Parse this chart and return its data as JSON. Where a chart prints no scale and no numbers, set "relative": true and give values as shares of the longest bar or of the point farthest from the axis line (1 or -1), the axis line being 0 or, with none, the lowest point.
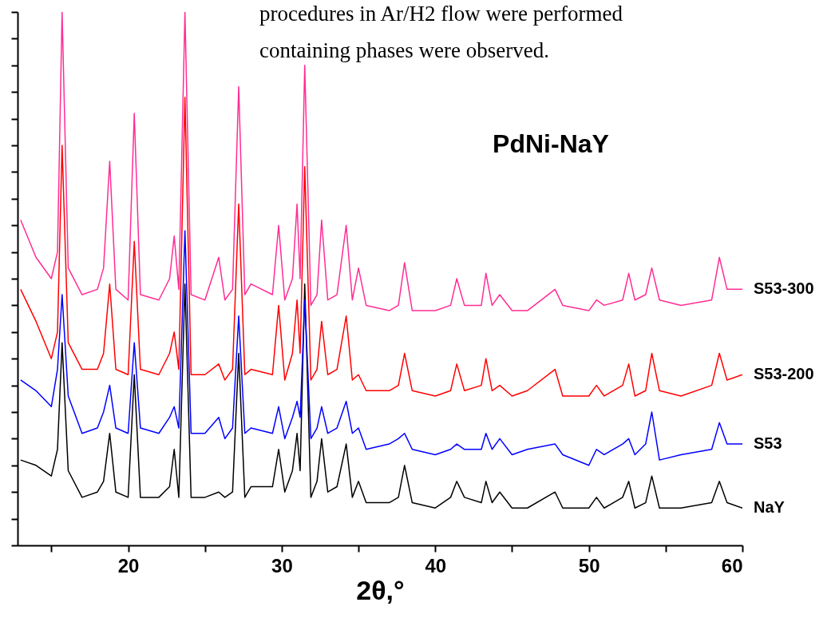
{
  "chart_data": {
    "type": "line",
    "title": "PdNi-NaY",
    "xlabel": "2θ,°",
    "relative": true,
    "annotations": [
      "procedures in Ar/H2 flow were performed",
      "containing phases were observed."
    ],
    "xlim": [
      12.8,
      60
    ],
    "xticks": [
      {
        "value": 15,
        "label": null
      },
      20,
      {
        "value": 25,
        "label": null
      },
      30,
      {
        "value": 35,
        "label": null
      },
      40,
      {
        "value": 45,
        "label": null
      },
      50,
      {
        "value": 55,
        "label": null
      },
      60
    ],
    "grid": false,
    "marker": "none",
    "line_style": "solid",
    "x": [
      13,
      14,
      15,
      15.4,
      15.7,
      16.1,
      17,
      18,
      18.4,
      18.8,
      19.2,
      20,
      20.4,
      20.8,
      22,
      22.7,
      23,
      23.3,
      23.7,
      24.1,
      25,
      25.9,
      26.3,
      26.8,
      27.2,
      27.6,
      28,
      29.4,
      29.8,
      30.2,
      30.7,
      31,
      31.2,
      31.5,
      31.9,
      32.3,
      32.6,
      33,
      33.6,
      34.2,
      34.6,
      35,
      35.5,
      37,
      37.6,
      38,
      38.5,
      40,
      41,
      41.4,
      41.9,
      43,
      43.3,
      43.7,
      44.2,
      45,
      46,
      47.8,
      48.3,
      50,
      50.5,
      51,
      52.2,
      52.6,
      53,
      53.7,
      54.1,
      54.6,
      56,
      58,
      58.5,
      59,
      60
    ],
    "series": [
      {
        "name": "NaY",
        "color": "#000000",
        "values": [
          0.16,
          0.15,
          0.13,
          0.18,
          0.38,
          0.14,
          0.09,
          0.1,
          0.12,
          0.21,
          0.1,
          0.09,
          0.32,
          0.09,
          0.09,
          0.11,
          0.18,
          0.09,
          0.49,
          0.09,
          0.09,
          0.1,
          0.09,
          0.1,
          0.36,
          0.09,
          0.11,
          0.11,
          0.18,
          0.1,
          0.14,
          0.21,
          0.14,
          0.49,
          0.09,
          0.12,
          0.2,
          0.1,
          0.11,
          0.19,
          0.09,
          0.12,
          0.08,
          0.08,
          0.09,
          0.15,
          0.08,
          0.07,
          0.09,
          0.12,
          0.09,
          0.08,
          0.12,
          0.08,
          0.1,
          0.07,
          0.07,
          0.1,
          0.07,
          0.07,
          0.09,
          0.07,
          0.09,
          0.12,
          0.07,
          0.08,
          0.13,
          0.07,
          0.07,
          0.08,
          0.12,
          0.08,
          0.07
        ]
      },
      {
        "name": "S53",
        "color": "#0000ff",
        "values": [
          0.31,
          0.29,
          0.26,
          0.33,
          0.47,
          0.28,
          0.21,
          0.22,
          0.25,
          0.3,
          0.22,
          0.21,
          0.38,
          0.22,
          0.21,
          0.24,
          0.26,
          0.22,
          0.59,
          0.21,
          0.21,
          0.24,
          0.2,
          0.22,
          0.43,
          0.21,
          0.22,
          0.21,
          0.26,
          0.2,
          0.24,
          0.27,
          0.24,
          0.46,
          0.2,
          0.22,
          0.26,
          0.21,
          0.22,
          0.27,
          0.21,
          0.22,
          0.18,
          0.19,
          0.2,
          0.21,
          0.18,
          0.17,
          0.18,
          0.19,
          0.18,
          0.18,
          0.21,
          0.18,
          0.2,
          0.17,
          0.18,
          0.19,
          0.17,
          0.15,
          0.18,
          0.17,
          0.19,
          0.2,
          0.17,
          0.19,
          0.25,
          0.16,
          0.17,
          0.18,
          0.23,
          0.19,
          0.19
        ]
      },
      {
        "name": "S53-200",
        "color": "#ff0000",
        "values": [
          0.48,
          0.42,
          0.35,
          0.4,
          0.75,
          0.38,
          0.33,
          0.33,
          0.36,
          0.49,
          0.33,
          0.32,
          0.57,
          0.33,
          0.32,
          0.36,
          0.4,
          0.33,
          0.84,
          0.32,
          0.32,
          0.34,
          0.31,
          0.33,
          0.64,
          0.32,
          0.33,
          0.32,
          0.45,
          0.31,
          0.36,
          0.46,
          0.36,
          0.71,
          0.31,
          0.33,
          0.42,
          0.32,
          0.33,
          0.43,
          0.31,
          0.32,
          0.29,
          0.29,
          0.3,
          0.36,
          0.29,
          0.28,
          0.29,
          0.34,
          0.29,
          0.3,
          0.35,
          0.29,
          0.3,
          0.28,
          0.29,
          0.33,
          0.28,
          0.28,
          0.3,
          0.28,
          0.3,
          0.34,
          0.28,
          0.29,
          0.36,
          0.29,
          0.28,
          0.3,
          0.36,
          0.31,
          0.32
        ]
      },
      {
        "name": "S53-300",
        "color": "#ff2d95",
        "values": [
          0.61,
          0.54,
          0.5,
          0.55,
          1.0,
          0.52,
          0.47,
          0.48,
          0.52,
          0.72,
          0.48,
          0.46,
          0.81,
          0.47,
          0.46,
          0.5,
          0.58,
          0.48,
          1.0,
          0.47,
          0.46,
          0.54,
          0.46,
          0.48,
          0.86,
          0.47,
          0.49,
          0.47,
          0.6,
          0.46,
          0.5,
          0.64,
          0.5,
          0.9,
          0.45,
          0.47,
          0.61,
          0.46,
          0.47,
          0.6,
          0.46,
          0.52,
          0.45,
          0.44,
          0.45,
          0.53,
          0.44,
          0.44,
          0.45,
          0.5,
          0.45,
          0.45,
          0.51,
          0.45,
          0.47,
          0.44,
          0.44,
          0.48,
          0.45,
          0.44,
          0.46,
          0.45,
          0.46,
          0.51,
          0.46,
          0.47,
          0.52,
          0.46,
          0.45,
          0.46,
          0.54,
          0.48,
          0.48
        ]
      }
    ]
  }
}
